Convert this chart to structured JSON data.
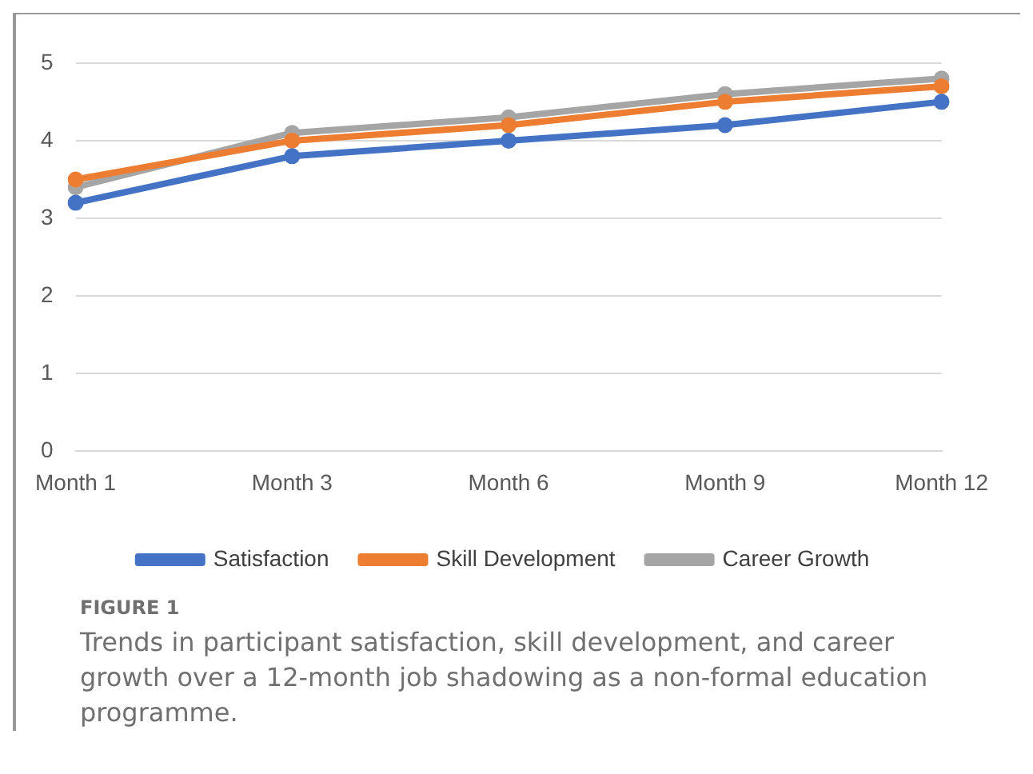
{
  "chart_data": {
    "type": "line",
    "categories": [
      "Month 1",
      "Month 3",
      "Month 6",
      "Month 9",
      "Month 12"
    ],
    "series": [
      {
        "name": "Satisfaction",
        "color": "#4472c4",
        "values": [
          3.2,
          3.8,
          4.0,
          4.2,
          4.5
        ]
      },
      {
        "name": "Skill Development",
        "color": "#ed7d31",
        "values": [
          3.5,
          4.0,
          4.2,
          4.5,
          4.7
        ]
      },
      {
        "name": "Career Growth",
        "color": "#a5a5a5",
        "values": [
          3.4,
          4.1,
          4.3,
          4.6,
          4.8
        ]
      }
    ],
    "ylim": [
      0,
      5
    ],
    "yticks": [
      0,
      1,
      2,
      3,
      4,
      5
    ],
    "grid": "y",
    "legend": "bottom",
    "marker": "circle",
    "line_style": "solid",
    "annotations": [
      "FIGURE 1",
      "Trends in participant satisfaction, skill development, and career growth over a 12-month job shadowing as a non-formal education programme."
    ]
  }
}
